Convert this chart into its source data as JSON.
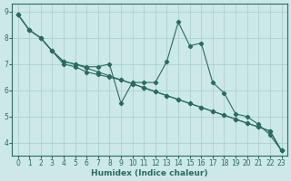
{
  "xlabel": "Humidex (Indice chaleur)",
  "ylabel": "",
  "background_color": "#cce8e8",
  "grid_color": "#aacccc",
  "line_color": "#2a6b5e",
  "xlim": [
    -0.5,
    23.5
  ],
  "ylim": [
    3.5,
    9.3
  ],
  "xticks": [
    0,
    1,
    2,
    3,
    4,
    5,
    6,
    7,
    8,
    9,
    10,
    11,
    12,
    13,
    14,
    15,
    16,
    17,
    18,
    19,
    20,
    21,
    22,
    23
  ],
  "yticks": [
    4,
    5,
    6,
    7,
    8,
    9
  ],
  "series": [
    {
      "x": [
        0,
        1,
        2,
        3,
        4,
        5,
        6,
        7,
        8,
        9,
        10,
        11,
        12,
        13,
        14,
        15,
        16,
        17,
        18,
        19,
        20,
        21,
        22,
        23
      ],
      "y": [
        8.9,
        8.3,
        8.0,
        7.5,
        7.1,
        7.0,
        6.9,
        6.9,
        7.0,
        5.5,
        6.3,
        6.3,
        6.3,
        7.1,
        8.6,
        7.7,
        7.8,
        6.3,
        5.9,
        5.1,
        5.0,
        4.7,
        4.3,
        3.7
      ]
    },
    {
      "x": [
        0,
        1,
        2,
        3,
        4,
        5,
        6,
        7,
        8,
        9,
        10,
        11,
        12,
        13,
        14,
        15,
        16,
        17,
        18,
        19,
        20,
        21,
        22,
        23
      ],
      "y": [
        8.9,
        8.3,
        8.0,
        7.5,
        7.1,
        7.0,
        6.85,
        6.7,
        6.55,
        6.4,
        6.25,
        6.1,
        5.95,
        5.8,
        5.65,
        5.5,
        5.35,
        5.2,
        5.05,
        4.9,
        4.75,
        4.6,
        4.45,
        3.7
      ]
    },
    {
      "x": [
        0,
        1,
        2,
        3,
        4,
        5,
        6,
        7,
        8,
        9,
        10,
        11,
        12,
        13,
        14,
        15,
        16,
        17,
        18,
        19,
        20,
        21,
        22,
        23
      ],
      "y": [
        8.9,
        8.3,
        8.0,
        7.5,
        7.0,
        6.9,
        6.7,
        6.6,
        6.5,
        6.4,
        6.25,
        6.1,
        5.95,
        5.8,
        5.65,
        5.5,
        5.35,
        5.2,
        5.05,
        4.9,
        4.75,
        4.6,
        4.45,
        3.7
      ]
    }
  ]
}
